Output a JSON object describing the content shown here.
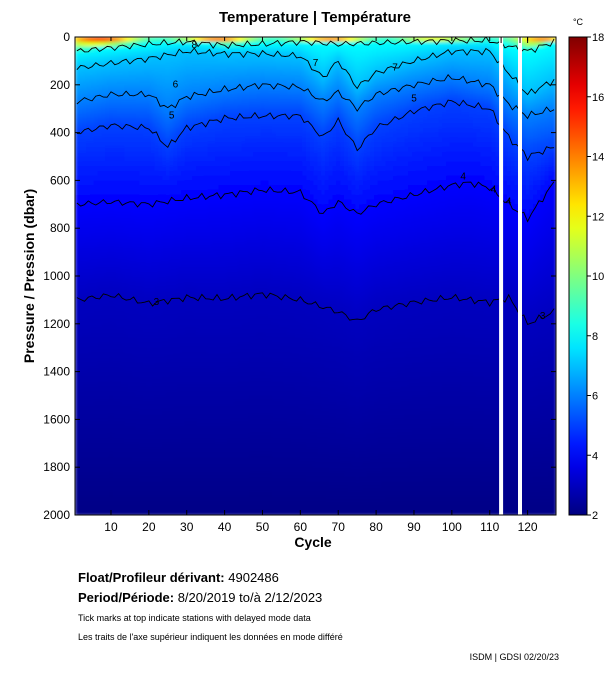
{
  "chart_data": {
    "type": "heatmap",
    "title": "Temperature | Température",
    "xlabel": "Cycle",
    "ylabel": "Pressure / Pression (dbar)",
    "x_range": [
      1,
      127
    ],
    "y_range": [
      0,
      2000
    ],
    "y_inverted": true,
    "x_ticks": [
      10,
      20,
      30,
      40,
      50,
      60,
      70,
      80,
      90,
      100,
      110,
      120
    ],
    "y_ticks": [
      0,
      200,
      400,
      600,
      800,
      1000,
      1200,
      1400,
      1600,
      1800,
      2000
    ],
    "colorbar": {
      "unit": "°C",
      "min": 2,
      "max": 18,
      "ticks": [
        2,
        4,
        6,
        8,
        10,
        12,
        14,
        16,
        18
      ],
      "colormap": "jet"
    },
    "isotherm_levels": [
      3,
      4,
      5,
      6,
      7,
      8
    ],
    "isotherm_labels": [
      {
        "text": "8",
        "cycle": 32,
        "pressure": 35
      },
      {
        "text": "7",
        "cycle": 64,
        "pressure": 110
      },
      {
        "text": "7",
        "cycle": 85,
        "pressure": 130
      },
      {
        "text": "6",
        "cycle": 27,
        "pressure": 200
      },
      {
        "text": "5",
        "cycle": 26,
        "pressure": 330
      },
      {
        "text": "5",
        "cycle": 90,
        "pressure": 260
      },
      {
        "text": "4",
        "cycle": 103,
        "pressure": 585
      },
      {
        "text": "4",
        "cycle": 111,
        "pressure": 640
      },
      {
        "text": "4",
        "cycle": 115,
        "pressure": 690
      },
      {
        "text": "3",
        "cycle": 22,
        "pressure": 1110
      },
      {
        "text": "3",
        "cycle": 124,
        "pressure": 1170
      }
    ],
    "isotherms": [
      {
        "level": 3,
        "pressure": [
          [
            1,
            1100
          ],
          [
            10,
            1080
          ],
          [
            20,
            1115
          ],
          [
            30,
            1090
          ],
          [
            40,
            1095
          ],
          [
            50,
            1075
          ],
          [
            60,
            1100
          ],
          [
            70,
            1150
          ],
          [
            75,
            1190
          ],
          [
            80,
            1140
          ],
          [
            90,
            1110
          ],
          [
            100,
            1090
          ],
          [
            110,
            1110
          ],
          [
            115,
            1090
          ],
          [
            120,
            1200
          ],
          [
            127,
            1150
          ]
        ]
      },
      {
        "level": 4,
        "pressure": [
          [
            1,
            700
          ],
          [
            10,
            690
          ],
          [
            20,
            700
          ],
          [
            30,
            675
          ],
          [
            40,
            660
          ],
          [
            50,
            640
          ],
          [
            60,
            650
          ],
          [
            66,
            740
          ],
          [
            70,
            690
          ],
          [
            75,
            740
          ],
          [
            80,
            700
          ],
          [
            90,
            660
          ],
          [
            100,
            620
          ],
          [
            105,
            610
          ],
          [
            110,
            630
          ],
          [
            115,
            700
          ],
          [
            120,
            760
          ],
          [
            127,
            610
          ]
        ]
      },
      {
        "level": 5,
        "pressure": [
          [
            1,
            400
          ],
          [
            10,
            370
          ],
          [
            20,
            380
          ],
          [
            25,
            460
          ],
          [
            30,
            380
          ],
          [
            40,
            340
          ],
          [
            50,
            330
          ],
          [
            60,
            330
          ],
          [
            66,
            420
          ],
          [
            70,
            350
          ],
          [
            75,
            470
          ],
          [
            80,
            380
          ],
          [
            90,
            310
          ],
          [
            100,
            270
          ],
          [
            110,
            300
          ],
          [
            115,
            420
          ],
          [
            120,
            500
          ],
          [
            127,
            460
          ]
        ]
      },
      {
        "level": 6,
        "pressure": [
          [
            1,
            270
          ],
          [
            10,
            240
          ],
          [
            20,
            240
          ],
          [
            25,
            300
          ],
          [
            30,
            250
          ],
          [
            40,
            220
          ],
          [
            50,
            200
          ],
          [
            60,
            210
          ],
          [
            66,
            270
          ],
          [
            70,
            230
          ],
          [
            75,
            300
          ],
          [
            80,
            240
          ],
          [
            90,
            200
          ],
          [
            100,
            170
          ],
          [
            110,
            200
          ],
          [
            115,
            280
          ],
          [
            120,
            330
          ],
          [
            127,
            300
          ]
        ]
      },
      {
        "level": 7,
        "pressure": [
          [
            1,
            130
          ],
          [
            10,
            110
          ],
          [
            20,
            90
          ],
          [
            30,
            60
          ],
          [
            40,
            70
          ],
          [
            50,
            70
          ],
          [
            60,
            80
          ],
          [
            66,
            170
          ],
          [
            70,
            100
          ],
          [
            75,
            210
          ],
          [
            80,
            150
          ],
          [
            90,
            100
          ],
          [
            100,
            60
          ],
          [
            110,
            60
          ],
          [
            115,
            150
          ],
          [
            120,
            240
          ],
          [
            127,
            180
          ]
        ]
      },
      {
        "level": 8,
        "pressure": [
          [
            1,
            60
          ],
          [
            10,
            45
          ],
          [
            20,
            30
          ],
          [
            30,
            20
          ],
          [
            40,
            35
          ],
          [
            50,
            30
          ],
          [
            60,
            20
          ],
          [
            70,
            30
          ],
          [
            80,
            25
          ],
          [
            90,
            20
          ],
          [
            100,
            15
          ],
          [
            110,
            15
          ],
          [
            120,
            60
          ],
          [
            127,
            20
          ]
        ]
      }
    ],
    "gaps_no_data_cycles": [
      113,
      118
    ],
    "delayed_mode_tick_cycles": [
      113,
      118,
      120
    ]
  },
  "float_label": "Float/Profileur dérivant:",
  "float_id": "4902486",
  "period_label": "Period/Période:",
  "period_value": "8/20/2019  to/à  2/12/2023",
  "note_en": "Tick marks at top indicate stations with delayed mode data",
  "note_fr": "Les traits de l'axe supérieur indiquent les données en mode différé",
  "credit": "ISDM | GDSI  02/20/23"
}
